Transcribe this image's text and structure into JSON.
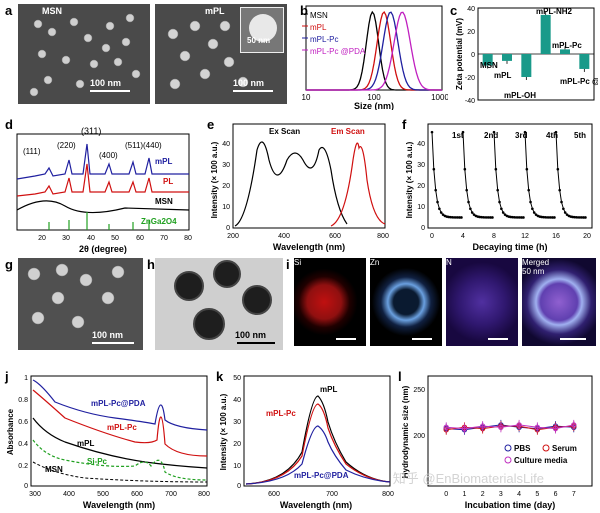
{
  "panels": {
    "a": {
      "label": "a",
      "img1_text": "MSN",
      "img1_scale": "100 nm",
      "img2_text": "mPL",
      "img2_scale": "100 nm",
      "inset_scale": "50 nm"
    },
    "b": {
      "label": "b"
    },
    "c": {
      "label": "c"
    },
    "d": {
      "label": "d"
    },
    "e": {
      "label": "e"
    },
    "f": {
      "label": "f"
    },
    "g": {
      "label": "g",
      "scale": "100 nm"
    },
    "h": {
      "label": "h",
      "scale": "100 nm"
    },
    "i": {
      "label": "i",
      "tiles": [
        "Si",
        "Zn",
        "N",
        "Merged"
      ],
      "scale": "50 nm"
    },
    "j": {
      "label": "j"
    },
    "k": {
      "label": "k"
    },
    "l": {
      "label": "l"
    }
  },
  "watermark": "知乎 @EnBiomaterialsLife",
  "chart_data": [
    {
      "id": "b",
      "type": "line",
      "xlabel": "Size (nm)",
      "xscale": "log",
      "xlim": [
        10,
        1000
      ],
      "xticks": [
        10,
        100,
        1000
      ],
      "series": [
        {
          "name": "MSN",
          "color": "#000000",
          "peak": 95
        },
        {
          "name": "mPL",
          "color": "#d01010",
          "peak": 140
        },
        {
          "name": "mPL-Pc",
          "color": "#2020a0",
          "peak": 175
        },
        {
          "name": "mPL-Pc @PDA",
          "color": "#c020c0",
          "peak": 260
        }
      ]
    },
    {
      "id": "c",
      "type": "bar",
      "ylabel": "Zeta potential (mV)",
      "ylim": [
        -40,
        40
      ],
      "yticks": [
        -40,
        -20,
        0,
        20,
        40
      ],
      "categories": [
        "MSN",
        "mPL",
        "mPL-OH",
        "mPL-NH2",
        "mPL-Pc",
        "mPL-Pc @PDA"
      ],
      "values": [
        -10,
        -6,
        -20,
        34,
        4,
        -13
      ],
      "color": "#1a9a8a"
    },
    {
      "id": "d",
      "type": "line",
      "xlabel": "2θ (degree)",
      "xlim": [
        10,
        80
      ],
      "xticks": [
        20,
        30,
        40,
        50,
        60,
        70,
        80
      ],
      "peak_labels": [
        "(111)",
        "(220)",
        "(311)",
        "(400)",
        "(511)",
        "(440)"
      ],
      "series": [
        {
          "name": "mPL",
          "color": "#2020a0"
        },
        {
          "name": "PL",
          "color": "#d01010"
        },
        {
          "name": "MSN",
          "color": "#000000"
        },
        {
          "name": "ZnGa2O4",
          "color": "#20a020"
        }
      ]
    },
    {
      "id": "e",
      "type": "line",
      "xlabel": "Wavelength (nm)",
      "ylabel": "Intensity (× 100 a.u.)",
      "xlim": [
        200,
        800
      ],
      "ylim": [
        0,
        50
      ],
      "xticks": [
        200,
        400,
        600,
        800
      ],
      "yticks": [
        0,
        10,
        20,
        30,
        40
      ],
      "series": [
        {
          "name": "Ex Scan",
          "color": "#000000"
        },
        {
          "name": "Em Scan",
          "color": "#d01010"
        }
      ]
    },
    {
      "id": "f",
      "type": "line",
      "xlabel": "Decaying time (h)",
      "ylabel": "Intensity (× 100 a.u.)",
      "xlim": [
        0,
        20
      ],
      "ylim": [
        0,
        50
      ],
      "xticks": [
        0,
        4,
        8,
        12,
        16,
        20
      ],
      "yticks": [
        0,
        10,
        20,
        30,
        40
      ],
      "cycles": [
        "1st",
        "2nd",
        "3rd",
        "4th",
        "5th"
      ]
    },
    {
      "id": "j",
      "type": "line",
      "xlabel": "Wavelength (nm)",
      "ylabel": "Absorbance",
      "xlim": [
        300,
        800
      ],
      "ylim": [
        0,
        1.0
      ],
      "xticks": [
        300,
        400,
        500,
        600,
        700,
        800
      ],
      "yticks": [
        0.0,
        0.2,
        0.4,
        0.6,
        0.8,
        1.0
      ],
      "series": [
        {
          "name": "mPL-Pc@PDA",
          "color": "#2020a0"
        },
        {
          "name": "mPL-Pc",
          "color": "#d01010"
        },
        {
          "name": "mPL",
          "color": "#000000"
        },
        {
          "name": "Si-Pc",
          "color": "#20a020"
        },
        {
          "name": "MSN",
          "color": "#000000"
        }
      ]
    },
    {
      "id": "k",
      "type": "line",
      "xlabel": "Wavelength (nm)",
      "ylabel": "Intensity (× 100 a.u.)",
      "xlim": [
        550,
        800
      ],
      "ylim": [
        0,
        50
      ],
      "xticks": [
        600,
        700,
        800
      ],
      "yticks": [
        0,
        10,
        20,
        30,
        40,
        50
      ],
      "series": [
        {
          "name": "mPL",
          "color": "#000000",
          "peak": 44
        },
        {
          "name": "mPL-Pc",
          "color": "#d01010",
          "peak": 40
        },
        {
          "name": "mPL-Pc@PDA",
          "color": "#2020a0",
          "peak": 30
        }
      ]
    },
    {
      "id": "l",
      "type": "line",
      "xlabel": "Incubation time (day)",
      "ylabel": "Hydrodynamic size (nm)",
      "xlim": [
        -1,
        8
      ],
      "ylim": [
        170,
        260
      ],
      "xticks": [
        0,
        1,
        2,
        3,
        4,
        5,
        6,
        7
      ],
      "yticks": [
        200,
        250
      ],
      "x": [
        0,
        1,
        2,
        3,
        4,
        5,
        6,
        7
      ],
      "series": [
        {
          "name": "PBS",
          "color": "#2020a0",
          "values": [
            217,
            216,
            218,
            220,
            218,
            217,
            219,
            218
          ]
        },
        {
          "name": "Serum",
          "color": "#d01010",
          "values": [
            216,
            218,
            217,
            219,
            219,
            216,
            218,
            219
          ]
        },
        {
          "name": "Culture media",
          "color": "#c030c0",
          "values": [
            218,
            217,
            219,
            218,
            220,
            218,
            217,
            220
          ]
        }
      ]
    }
  ]
}
